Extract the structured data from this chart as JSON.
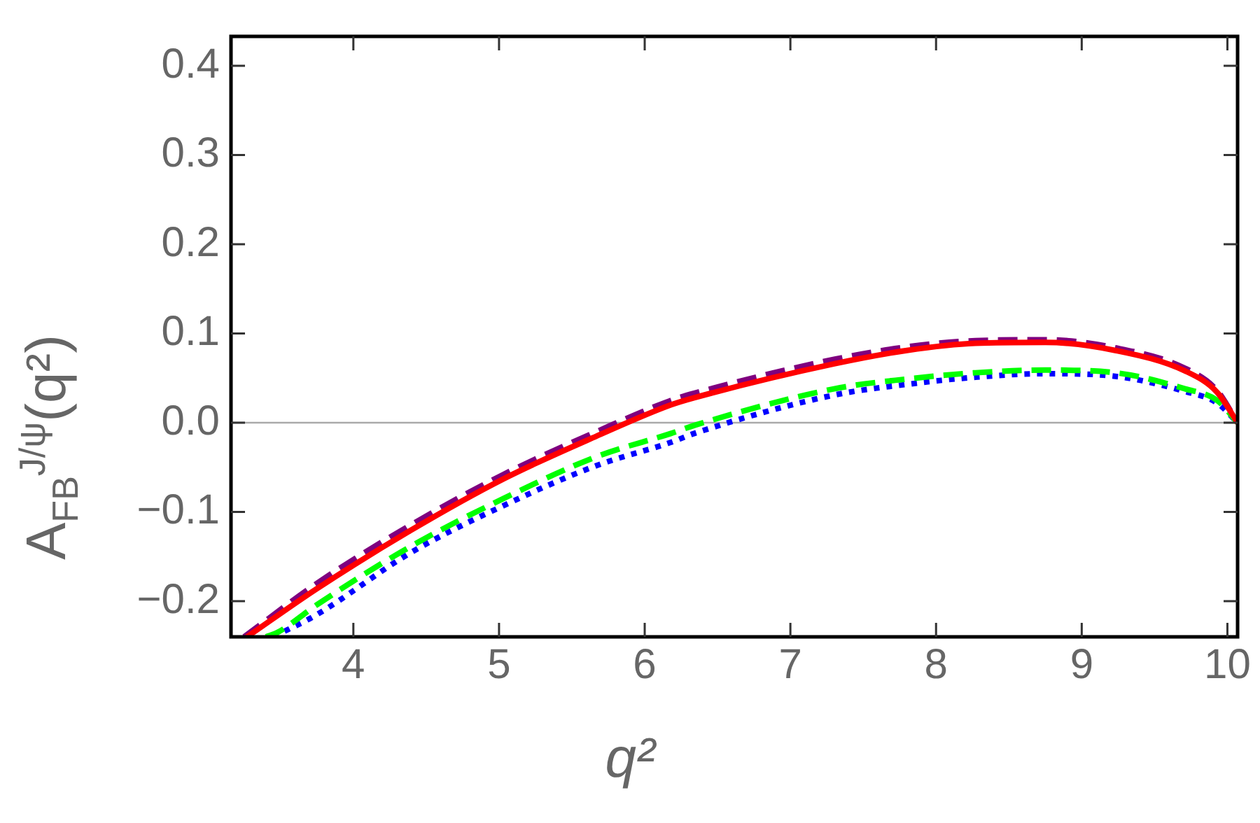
{
  "chart_data": {
    "type": "line",
    "xlabel": "q²",
    "ylabel": "A$_{FB}$$^{J/ψ}$(q²)",
    "xlim": [
      3.16,
      10.07
    ],
    "ylim": [
      -0.24,
      0.433
    ],
    "xticks": [
      4,
      5,
      6,
      7,
      8,
      9,
      10
    ],
    "yticks": [
      {
        "value": -0.2,
        "label": "−0.2"
      },
      {
        "value": -0.1,
        "label": "−0.1"
      },
      {
        "value": 0,
        "label": "0.0"
      },
      {
        "value": 0.1,
        "label": "0.1"
      },
      {
        "value": 0.2,
        "label": "0.2"
      },
      {
        "value": 0.3,
        "label": "0.3"
      },
      {
        "value": 0.4,
        "label": "0.4"
      }
    ],
    "grid": false,
    "legend": false,
    "marker": "none",
    "ref_lines": [
      {
        "axis": "y",
        "value": 0,
        "color": "#aaaaaa"
      }
    ],
    "series": [
      {
        "color": "#ff0000",
        "line_style": "solid",
        "x": [
          3.27,
          3.75,
          4.39,
          5.03,
          5.67,
          6.18,
          6.34,
          7.3,
          7.8,
          8.27,
          8.75,
          9.23,
          9.71,
          9.93,
          10.07
        ],
        "values": [
          -0.24,
          -0.186,
          -0.121,
          -0.063,
          -0.015,
          0.02,
          0.028,
          0.066,
          0.081,
          0.089,
          0.09,
          0.081,
          0.058,
          0.034,
          0
        ]
      },
      {
        "color": "#7f007f",
        "line_style": "dashed",
        "x": [
          3.25,
          3.75,
          4.39,
          5.03,
          5.67,
          6.18,
          6.34,
          7.3,
          7.8,
          8.27,
          8.75,
          9.23,
          9.71,
          9.93,
          10.07
        ],
        "values": [
          -0.24,
          -0.18,
          -0.115,
          -0.058,
          -0.01,
          0.025,
          0.033,
          0.071,
          0.085,
          0.092,
          0.093,
          0.084,
          0.061,
          0.036,
          0
        ]
      },
      {
        "color": "#00ff00",
        "line_style": "dashed",
        "x": [
          3.4,
          3.48,
          3.75,
          4.39,
          5.03,
          5.67,
          6.18,
          6.34,
          7.3,
          7.8,
          8.27,
          8.75,
          9.23,
          9.71,
          9.93,
          10.07
        ],
        "values": [
          -0.24,
          -0.235,
          -0.204,
          -0.139,
          -0.085,
          -0.038,
          -0.012,
          -0.003,
          0.038,
          0.049,
          0.056,
          0.059,
          0.056,
          0.038,
          0.025,
          0
        ]
      },
      {
        "color": "#0000ff",
        "line_style": "dotted",
        "x": [
          3.45,
          3.75,
          4.39,
          5.03,
          5.67,
          6.18,
          6.34,
          7.3,
          7.8,
          8.27,
          8.75,
          9.23,
          9.71,
          9.93,
          10.07
        ],
        "values": [
          -0.24,
          -0.215,
          -0.146,
          -0.093,
          -0.048,
          -0.022,
          -0.012,
          0.031,
          0.043,
          0.051,
          0.055,
          0.052,
          0.035,
          0.022,
          0
        ]
      }
    ]
  }
}
